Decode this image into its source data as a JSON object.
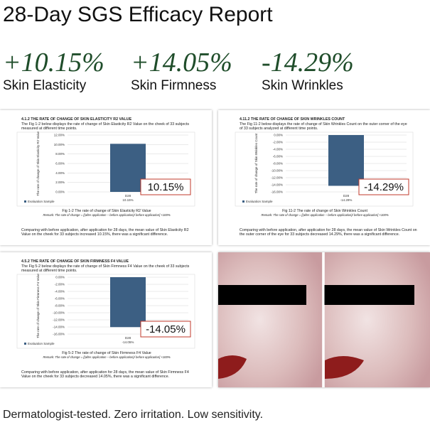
{
  "title": "28-Day SGS Efficacy Report",
  "stats": [
    {
      "value": "+10.15%",
      "label": "Skin Elasticity"
    },
    {
      "value": "+14.05%",
      "label": "Skin Firmness"
    },
    {
      "value": "-14.29%",
      "label": "Skin Wrinkles"
    }
  ],
  "footer": "Dermatologist-tested. Zero irritation. Low sensitivity.",
  "chart_data": [
    {
      "type": "bar",
      "section": "4.1.2 THE RATE OF CHANGE OF SKIN ELASTICITY R2 VALUE",
      "intro": "The Fig 1-2 below displays the rate of change of Skin Elasticity R2 Value on the cheek of 33 subjects measured at different time points.",
      "ylabel": "The rate of change of Skin Elasticity R2 Value",
      "categories": [
        "D28"
      ],
      "series": [
        {
          "name": "Evaluation Sample",
          "color": "#3c5f83",
          "values": [
            10.15
          ],
          "value_labels": [
            "10.15%"
          ]
        }
      ],
      "ylim": [
        0,
        12
      ],
      "yticks": [
        {
          "value": 0,
          "label": "0.00%"
        },
        {
          "value": 2,
          "label": "2.00%"
        },
        {
          "value": 4,
          "label": "4.00%"
        },
        {
          "value": 6,
          "label": "6.00%"
        },
        {
          "value": 8,
          "label": "8.00%"
        },
        {
          "value": 10,
          "label": "10.00%"
        },
        {
          "value": 12,
          "label": "12.00%"
        }
      ],
      "grid": true,
      "caption": "Fig 1-2 The rate of change of Skin Elasticity R2 Value",
      "remark": "Remark: The rate of change = [(after application − before application)/ before application] ×100%",
      "conclusion": "Comparing with before application, after application for 28 days, the mean value of Skin Elasticity R2 Value on the cheek for 33 subjects increased 10.15%, there was a significant difference."
    },
    {
      "type": "bar",
      "section": "4.11.2 THE RATE OF CHANGE OF SKIN WRINKLES COUNT",
      "intro": "The Fig 11-2 below displays the rate of change of Skin Wrinkles Count on the outer corner of the eye of 33 subjects analyzed at different time points.",
      "ylabel": "The rate of change of Skin Wrinkles Count",
      "categories": [
        "D28"
      ],
      "series": [
        {
          "name": "Evaluation Sample",
          "color": "#3c5f83",
          "values": [
            -14.29
          ],
          "value_labels": [
            "-14.29%"
          ]
        }
      ],
      "ylim": [
        -16,
        0
      ],
      "yticks": [
        {
          "value": 0,
          "label": "0.00%"
        },
        {
          "value": -2,
          "label": "-2.00%"
        },
        {
          "value": -4,
          "label": "-4.00%"
        },
        {
          "value": -6,
          "label": "-6.00%"
        },
        {
          "value": -8,
          "label": "-8.00%"
        },
        {
          "value": -10,
          "label": "-10.00%"
        },
        {
          "value": -12,
          "label": "-12.00%"
        },
        {
          "value": -14,
          "label": "-14.00%"
        },
        {
          "value": -16,
          "label": "-16.00%"
        }
      ],
      "grid": true,
      "caption": "Fig 11-2 The rate of change of Skin Wrinkles Count",
      "remark": "Remark: The rate of change = [(after application − before application)/ before application] ×100%",
      "conclusion": "Comparing with before application, after application for 28 days, the mean value of Skin Wrinkles Count on the outer corner of the eye for 33 subjects decreased 14.29%, there was a significant difference."
    },
    {
      "type": "bar",
      "section": "4.5.2 THE RATE OF CHANGE OF SKIN FIRMNESS F4 VALUE",
      "intro": "The Fig 5-2 below displays the rate of change of Skin Firmness F4 Value on the cheek of 33 subjects measured at different time points.",
      "ylabel": "The rate of change of Skin Firmness F4 Value",
      "categories": [
        "D28"
      ],
      "series": [
        {
          "name": "Evaluation Sample",
          "color": "#3c5f83",
          "values": [
            -14.05
          ],
          "value_labels": [
            "-14.05%"
          ]
        }
      ],
      "ylim": [
        -16,
        0
      ],
      "yticks": [
        {
          "value": 0,
          "label": "0.00%"
        },
        {
          "value": -2,
          "label": "-2.00%"
        },
        {
          "value": -4,
          "label": "-4.00%"
        },
        {
          "value": -6,
          "label": "-6.00%"
        },
        {
          "value": -8,
          "label": "-8.00%"
        },
        {
          "value": -10,
          "label": "-10.00%"
        },
        {
          "value": -12,
          "label": "-12.00%"
        },
        {
          "value": -14,
          "label": "-14.00%"
        },
        {
          "value": -16,
          "label": "-16.00%"
        }
      ],
      "grid": true,
      "caption": "Fig 5-2 The rate of change of Skin Firmness F4 Value",
      "remark": "Remark: The rate of change = [(after application − before application)/ before application] ×100%",
      "conclusion": "Comparing with before application, after application for 28 days, the mean value of Skin Firmness F4 Value on the cheek for 33 subjects decreased 14.05%, there was a significant difference."
    }
  ]
}
